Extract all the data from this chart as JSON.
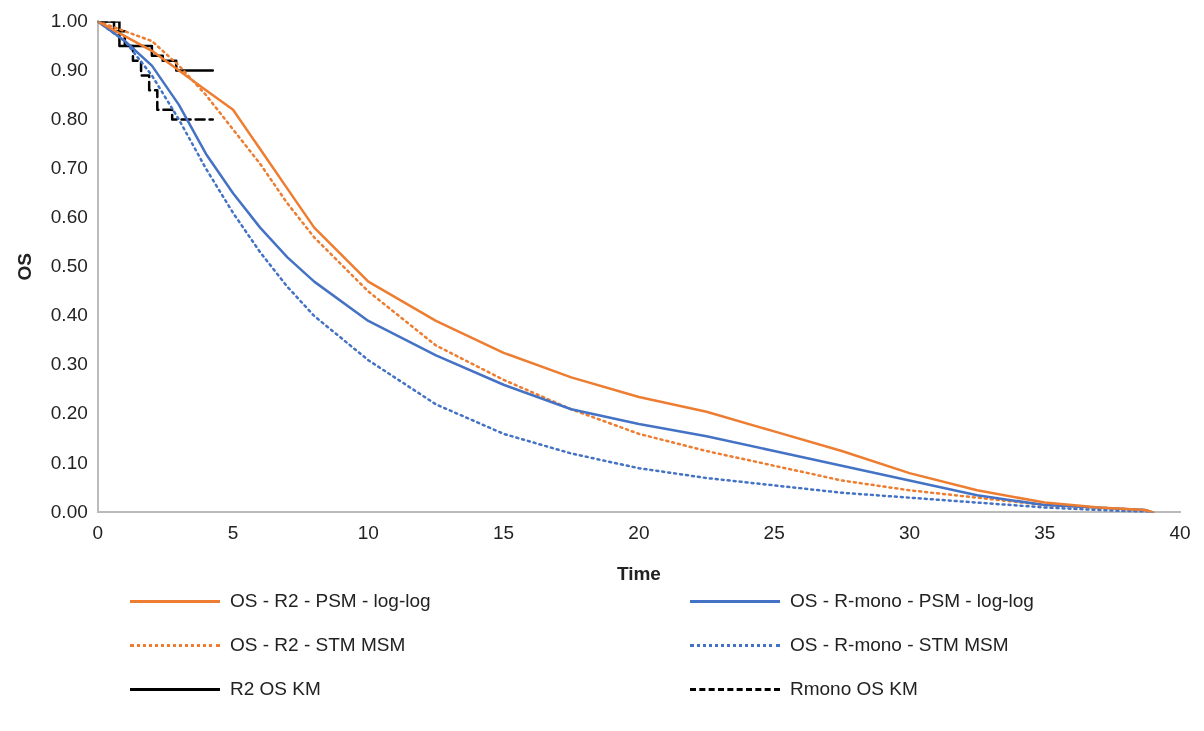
{
  "chart_data": {
    "type": "line",
    "xlabel": "Time",
    "ylabel": "OS",
    "xlim": [
      0,
      40
    ],
    "xticks": [
      0,
      5,
      10,
      15,
      20,
      25,
      30,
      35,
      40
    ],
    "ylim": [
      0,
      1
    ],
    "yticks": [
      {
        "value": 0,
        "label": "0.00"
      },
      {
        "value": 0.1,
        "label": "0.10"
      },
      {
        "value": 0.2,
        "label": "0.20"
      },
      {
        "value": 0.3,
        "label": "0.30"
      },
      {
        "value": 0.4,
        "label": "0.40"
      },
      {
        "value": 0.5,
        "label": "0.50"
      },
      {
        "value": 0.6,
        "label": "0.60"
      },
      {
        "value": 0.7,
        "label": "0.70"
      },
      {
        "value": 0.8,
        "label": "0.80"
      },
      {
        "value": 0.9,
        "label": "0.90"
      },
      {
        "value": 1,
        "label": "1.00"
      }
    ],
    "grid": false,
    "legend": "bottom",
    "marker": "none",
    "series": [
      {
        "name": "OS - R2 - PSM - log-log",
        "color": "#ed7d31",
        "line_style": "solid",
        "x": [
          0,
          1,
          2,
          3,
          4,
          5,
          6,
          7,
          8,
          10,
          12.5,
          15,
          17.5,
          20,
          22.5,
          25,
          27.5,
          30,
          32.5,
          35,
          37,
          38.7,
          39
        ],
        "values": [
          1,
          0.97,
          0.94,
          0.9,
          0.86,
          0.82,
          0.74,
          0.66,
          0.58,
          0.47,
          0.39,
          0.325,
          0.275,
          0.235,
          0.205,
          0.165,
          0.125,
          0.08,
          0.045,
          0.02,
          0.01,
          0.005,
          0
        ]
      },
      {
        "name": "OS - R-mono - PSM - log-log",
        "color": "#4472c4",
        "line_style": "solid",
        "x": [
          0,
          1,
          2,
          3,
          4,
          5,
          6,
          7,
          8,
          10,
          12.5,
          15,
          17.5,
          20,
          22.5,
          25,
          27.5,
          30,
          32.5,
          35,
          38.7,
          39
        ],
        "values": [
          1,
          0.96,
          0.91,
          0.83,
          0.73,
          0.65,
          0.58,
          0.52,
          0.47,
          0.39,
          0.32,
          0.26,
          0.21,
          0.18,
          0.155,
          0.125,
          0.095,
          0.065,
          0.035,
          0.015,
          0.005,
          0
        ]
      },
      {
        "name": "OS - R2 - STM MSM",
        "color": "#ed7d31",
        "line_style": "dotted",
        "x": [
          0,
          2,
          3,
          4,
          5,
          6,
          7,
          8,
          10,
          12.5,
          15,
          17.5,
          20,
          22.5,
          25,
          27.5,
          30,
          32.5,
          35,
          38.7,
          39
        ],
        "values": [
          1,
          0.96,
          0.91,
          0.85,
          0.78,
          0.71,
          0.63,
          0.56,
          0.45,
          0.34,
          0.27,
          0.21,
          0.16,
          0.125,
          0.095,
          0.065,
          0.045,
          0.03,
          0.015,
          0.005,
          0
        ]
      },
      {
        "name": "OS - R-mono - STM MSM",
        "color": "#4472c4",
        "line_style": "dotted",
        "x": [
          0,
          1,
          2,
          3,
          4,
          5,
          6,
          7,
          8,
          10,
          12.5,
          15,
          17.5,
          20,
          22.5,
          25,
          27.5,
          30,
          32.5,
          35,
          39
        ],
        "values": [
          1,
          0.96,
          0.89,
          0.8,
          0.7,
          0.61,
          0.53,
          0.46,
          0.4,
          0.31,
          0.22,
          0.16,
          0.12,
          0.09,
          0.07,
          0.055,
          0.04,
          0.03,
          0.02,
          0.01,
          0
        ]
      },
      {
        "name": "R2 OS KM",
        "type": "step",
        "color": "#000000",
        "line_style": "solid",
        "x": [
          0,
          0.8,
          2,
          2.4,
          2.9,
          4.25
        ],
        "values": [
          1,
          0.95,
          0.93,
          0.92,
          0.9,
          0.9
        ]
      },
      {
        "name": "Rmono OS KM",
        "type": "step",
        "color": "#000000",
        "line_style": "dashed",
        "x": [
          0,
          0.6,
          1,
          1.3,
          1.6,
          1.9,
          2.2,
          2.75,
          4.25
        ],
        "values": [
          1,
          0.98,
          0.95,
          0.92,
          0.89,
          0.86,
          0.82,
          0.8,
          0.8
        ]
      }
    ]
  }
}
